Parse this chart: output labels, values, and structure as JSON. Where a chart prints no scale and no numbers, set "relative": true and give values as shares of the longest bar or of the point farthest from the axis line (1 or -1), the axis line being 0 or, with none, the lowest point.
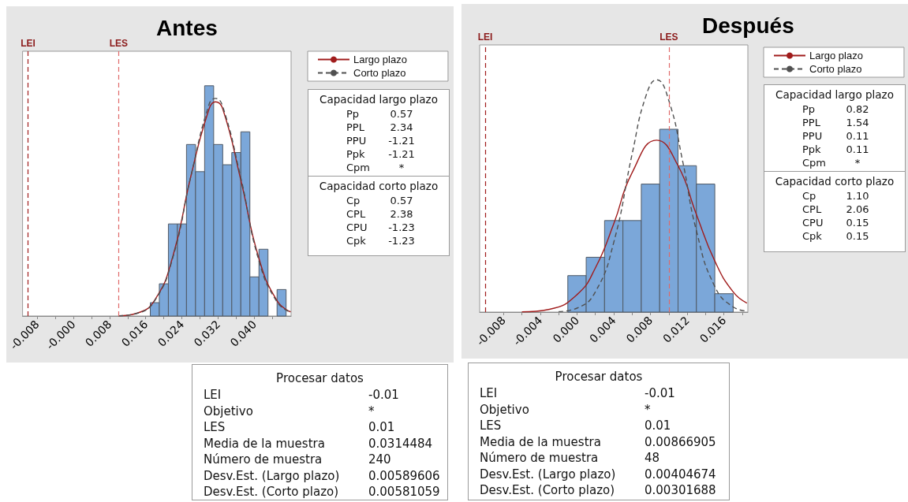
{
  "chart_data": [
    {
      "type": "histogram",
      "title": "Antes",
      "relative": true,
      "bins": [
        0.017,
        0.019,
        0.021,
        0.023,
        0.025,
        0.027,
        0.029,
        0.031,
        0.033,
        0.035,
        0.037,
        0.039,
        0.041,
        0.043,
        0.045,
        0.047
      ],
      "values": [
        0.058,
        0.14,
        0.4,
        0.4,
        0.745,
        0.627,
        1,
        0.745,
        0.657,
        0.71,
        0.8,
        0.17,
        0.29,
        0,
        0.115
      ],
      "color": "#7ba7d9",
      "series": [
        {
          "type": "line",
          "name": "Largo plazo",
          "color": "#a01c1c",
          "line_style": "solid",
          "x": [
            0.01,
            0.014,
            0.018,
            0.022,
            0.026,
            0.03,
            0.0314,
            0.033,
            0.037,
            0.041,
            0.045,
            0.048
          ],
          "values": [
            0.001,
            0.012,
            0.07,
            0.26,
            0.61,
            0.9,
            0.93,
            0.9,
            0.59,
            0.25,
            0.066,
            0.018
          ]
        },
        {
          "type": "line",
          "name": "Corto plazo",
          "color": "#505050",
          "line_style": "dashed",
          "x": [
            0.01,
            0.014,
            0.018,
            0.022,
            0.026,
            0.03,
            0.0314,
            0.033,
            0.037,
            0.041,
            0.045,
            0.048
          ],
          "values": [
            0.001,
            0.011,
            0.067,
            0.255,
            0.61,
            0.92,
            0.945,
            0.91,
            0.6,
            0.24,
            0.061,
            0.016
          ]
        }
      ],
      "xlim": [
        -0.0112,
        0.0481
      ],
      "xticks": [
        {
          "value": -0.008,
          "label": "-0.008"
        },
        {
          "value": -0.004,
          "label": null
        },
        {
          "value": 0,
          "label": "-0.000"
        },
        {
          "value": 0.004,
          "label": null
        },
        {
          "value": 0.008,
          "label": "0.008"
        },
        {
          "value": 0.012,
          "label": null
        },
        {
          "value": 0.016,
          "label": "0.016"
        },
        {
          "value": 0.02,
          "label": null
        },
        {
          "value": 0.024,
          "label": "0.024"
        },
        {
          "value": 0.028,
          "label": null
        },
        {
          "value": 0.032,
          "label": "0.032"
        },
        {
          "value": 0.036,
          "label": null
        },
        {
          "value": 0.04,
          "label": "0.040"
        },
        {
          "value": 0.044,
          "label": null
        }
      ],
      "ref_lines": [
        {
          "axis": "x",
          "value": -0.01,
          "label": "LEI",
          "color": "#a01c1c",
          "line_style": "dashed"
        },
        {
          "axis": "x",
          "value": 0.01,
          "label": "LES",
          "color": "#e06a6a",
          "line_style": "dashed"
        }
      ],
      "legend": "right",
      "grid": false,
      "annotations": [
        "Capacidad largo plazo",
        "Pp",
        "0.57",
        "PPL",
        "2.34",
        "PPU",
        "-1.21",
        "Ppk",
        "-1.21",
        "Cpm",
        "*",
        "Capacidad corto plazo",
        "Cp",
        "0.57",
        "CPL",
        "2.38",
        "CPU",
        "-1.23",
        "Cpk",
        "-1.23",
        "Procesar datos",
        "LEI",
        "-0.01",
        "Objetivo",
        "*",
        "LES",
        "0.01",
        "Media de la muestra",
        "0.0314484",
        "Número de muestra",
        "240",
        "Desv.Est. (Largo plazo)",
        "0.00589606",
        "Desv.Est. (Corto plazo)",
        "0.00581059"
      ]
    },
    {
      "type": "histogram",
      "title": "Después",
      "relative": true,
      "bins": [
        -0.001,
        0.001,
        0.003,
        0.005,
        0.007,
        0.009,
        0.011,
        0.013,
        0.015,
        0.017
      ],
      "values": [
        0.157,
        0.236,
        0.394,
        0.394,
        0.551,
        0.787,
        0.63,
        0.551,
        0.079
      ],
      "color": "#7ba7d9",
      "series": [
        {
          "type": "line",
          "name": "Largo plazo",
          "color": "#a01c1c",
          "line_style": "solid",
          "x": [
            -0.006,
            -0.003,
            0,
            0.002,
            0.004,
            0.006,
            0.00867,
            0.011,
            0.013,
            0.015,
            0.017,
            0.0185
          ],
          "values": [
            0.001,
            0.012,
            0.075,
            0.19,
            0.38,
            0.6,
            0.74,
            0.63,
            0.42,
            0.22,
            0.087,
            0.039
          ]
        },
        {
          "type": "line",
          "name": "Corto plazo",
          "color": "#505050",
          "line_style": "dashed",
          "x": [
            -0.002,
            0,
            0.002,
            0.004,
            0.006,
            0.0075,
            0.00867,
            0.01,
            0.0115,
            0.013,
            0.015,
            0.017,
            0.0185
          ],
          "values": [
            0.002,
            0.017,
            0.087,
            0.3,
            0.68,
            0.93,
            1,
            0.91,
            0.65,
            0.35,
            0.11,
            0.022,
            0.005
          ]
        }
      ],
      "xlim": [
        -0.0106,
        0.0186
      ],
      "xticks": [
        {
          "value": -0.008,
          "label": "-0.008"
        },
        {
          "value": -0.006,
          "label": null
        },
        {
          "value": -0.004,
          "label": "-0.004"
        },
        {
          "value": -0.002,
          "label": null
        },
        {
          "value": 0,
          "label": "0.000"
        },
        {
          "value": 0.002,
          "label": null
        },
        {
          "value": 0.004,
          "label": "0.004"
        },
        {
          "value": 0.006,
          "label": null
        },
        {
          "value": 0.008,
          "label": "0.008"
        },
        {
          "value": 0.01,
          "label": null
        },
        {
          "value": 0.012,
          "label": "0.012"
        },
        {
          "value": 0.014,
          "label": null
        },
        {
          "value": 0.016,
          "label": "0.016"
        },
        {
          "value": 0.018,
          "label": null
        }
      ],
      "ref_lines": [
        {
          "axis": "x",
          "value": -0.01,
          "label": "LEI",
          "color": "#a01c1c",
          "line_style": "dashed"
        },
        {
          "axis": "x",
          "value": 0.01,
          "label": "LES",
          "color": "#e06a6a",
          "line_style": "dashed"
        }
      ],
      "legend": "right",
      "grid": false,
      "annotations": [
        "Capacidad largo plazo",
        "Pp",
        "0.82",
        "PPL",
        "1.54",
        "PPU",
        "0.11",
        "Ppk",
        "0.11",
        "Cpm",
        "*",
        "Capacidad corto plazo",
        "Cp",
        "1.10",
        "CPL",
        "2.06",
        "CPU",
        "0.15",
        "Cpk",
        "0.15",
        "Procesar datos",
        "LEI",
        "-0.01",
        "Objetivo",
        "*",
        "LES",
        "0.01",
        "Media de la muestra",
        "0.00866905",
        "Número de muestra",
        "48",
        "Desv.Est. (Largo plazo)",
        "0.00404674",
        "Desv.Est. (Corto plazo)",
        "0.00301688"
      ]
    }
  ]
}
